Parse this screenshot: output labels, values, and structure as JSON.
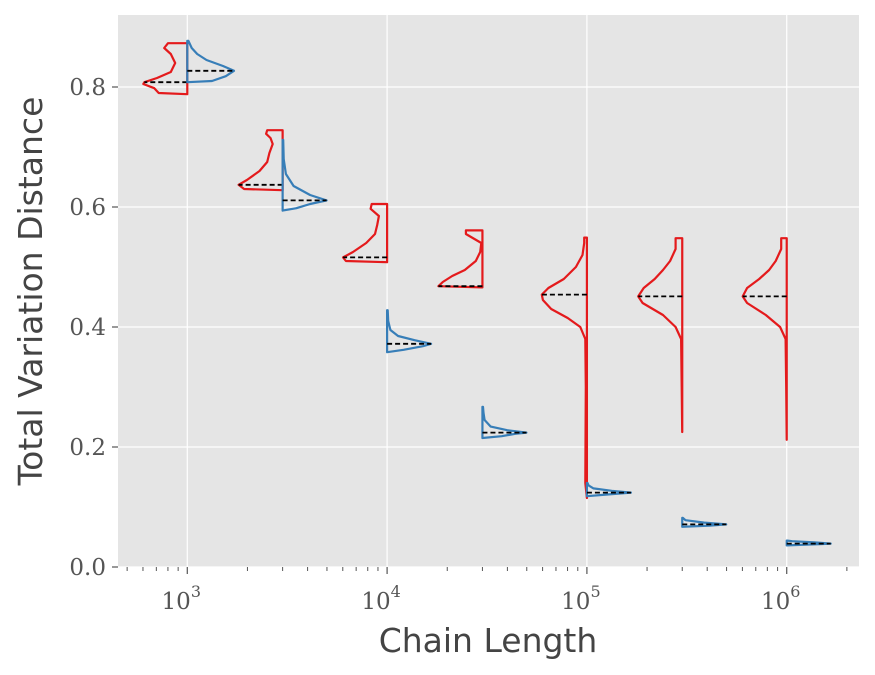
{
  "chart_data": {
    "type": "violin",
    "xlabel": "Chain Length",
    "ylabel": "Total Variation Distance",
    "x_scale": "log",
    "xlim": [
      450,
      2300000
    ],
    "ylim": [
      0.0,
      0.92
    ],
    "x_ticks": [
      {
        "value": 1000,
        "base": "10",
        "exp": "3"
      },
      {
        "value": 10000,
        "base": "10",
        "exp": "4"
      },
      {
        "value": 100000,
        "base": "10",
        "exp": "5"
      },
      {
        "value": 1000000,
        "base": "10",
        "exp": "6"
      }
    ],
    "y_ticks": [
      {
        "value": 0.0,
        "label": "0.0"
      },
      {
        "value": 0.2,
        "label": "0.2"
      },
      {
        "value": 0.4,
        "label": "0.4"
      },
      {
        "value": 0.6,
        "label": "0.6"
      },
      {
        "value": 0.8,
        "label": "0.8"
      }
    ],
    "grid": true,
    "background": "#e5e5e5",
    "colors": {
      "red": "#e41a1c",
      "blue": "#377eb8",
      "median": "#000000"
    },
    "series": [
      {
        "color": "#e41a1c",
        "side": "left",
        "violins": [
          {
            "x": 1000,
            "min": 0.788,
            "max": 0.873,
            "median": 0.808,
            "profile": [
              [
                0.788,
                0.0
              ],
              [
                0.79,
                0.52
              ],
              [
                0.798,
                0.6
              ],
              [
                0.805,
                0.8
              ],
              [
                0.808,
                0.78
              ],
              [
                0.815,
                0.55
              ],
              [
                0.825,
                0.3
              ],
              [
                0.84,
                0.22
              ],
              [
                0.855,
                0.3
              ],
              [
                0.865,
                0.42
              ],
              [
                0.873,
                0.35
              ]
            ]
          },
          {
            "x": 3000,
            "min": 0.628,
            "max": 0.728,
            "median": 0.637,
            "profile": [
              [
                0.628,
                0.0
              ],
              [
                0.63,
                0.7
              ],
              [
                0.637,
                0.8
              ],
              [
                0.645,
                0.65
              ],
              [
                0.66,
                0.42
              ],
              [
                0.675,
                0.28
              ],
              [
                0.69,
                0.24
              ],
              [
                0.705,
                0.18
              ],
              [
                0.715,
                0.22
              ],
              [
                0.722,
                0.3
              ],
              [
                0.728,
                0.28
              ]
            ]
          },
          {
            "x": 10000,
            "min": 0.508,
            "max": 0.605,
            "median": 0.516,
            "profile": [
              [
                0.508,
                0.0
              ],
              [
                0.51,
                0.75
              ],
              [
                0.516,
                0.8
              ],
              [
                0.525,
                0.62
              ],
              [
                0.54,
                0.38
              ],
              [
                0.555,
                0.22
              ],
              [
                0.57,
                0.18
              ],
              [
                0.585,
                0.15
              ],
              [
                0.597,
                0.3
              ],
              [
                0.605,
                0.28
              ]
            ]
          },
          {
            "x": 30000,
            "min": 0.466,
            "max": 0.561,
            "median": 0.468,
            "profile": [
              [
                0.466,
                0.0
              ],
              [
                0.468,
                0.8
              ],
              [
                0.475,
                0.72
              ],
              [
                0.485,
                0.55
              ],
              [
                0.495,
                0.32
              ],
              [
                0.51,
                0.12
              ],
              [
                0.525,
                0.04
              ],
              [
                0.54,
                0.02
              ],
              [
                0.555,
                0.3
              ],
              [
                0.561,
                0.3
              ]
            ]
          },
          {
            "x": 100000,
            "min": 0.115,
            "max": 0.549,
            "median": 0.454,
            "profile": [
              [
                0.115,
                0.0
              ],
              [
                0.14,
                0.03
              ],
              [
                0.3,
                0.02
              ],
              [
                0.38,
                0.03
              ],
              [
                0.4,
                0.12
              ],
              [
                0.415,
                0.35
              ],
              [
                0.43,
                0.65
              ],
              [
                0.445,
                0.8
              ],
              [
                0.454,
                0.82
              ],
              [
                0.465,
                0.7
              ],
              [
                0.48,
                0.42
              ],
              [
                0.5,
                0.2
              ],
              [
                0.52,
                0.08
              ],
              [
                0.54,
                0.05
              ],
              [
                0.549,
                0.05
              ]
            ]
          },
          {
            "x": 300000,
            "min": 0.225,
            "max": 0.548,
            "median": 0.451,
            "profile": [
              [
                0.225,
                0.0
              ],
              [
                0.3,
                0.01
              ],
              [
                0.38,
                0.02
              ],
              [
                0.4,
                0.12
              ],
              [
                0.42,
                0.35
              ],
              [
                0.44,
                0.72
              ],
              [
                0.451,
                0.8
              ],
              [
                0.465,
                0.7
              ],
              [
                0.48,
                0.5
              ],
              [
                0.495,
                0.35
              ],
              [
                0.51,
                0.22
              ],
              [
                0.53,
                0.12
              ],
              [
                0.548,
                0.12
              ]
            ]
          },
          {
            "x": 1000000,
            "min": 0.212,
            "max": 0.548,
            "median": 0.451,
            "profile": [
              [
                0.212,
                0.0
              ],
              [
                0.3,
                0.01
              ],
              [
                0.38,
                0.02
              ],
              [
                0.4,
                0.12
              ],
              [
                0.42,
                0.38
              ],
              [
                0.44,
                0.72
              ],
              [
                0.451,
                0.8
              ],
              [
                0.465,
                0.72
              ],
              [
                0.48,
                0.5
              ],
              [
                0.495,
                0.32
              ],
              [
                0.51,
                0.2
              ],
              [
                0.53,
                0.1
              ],
              [
                0.548,
                0.1
              ]
            ]
          }
        ]
      },
      {
        "color": "#377eb8",
        "side": "right",
        "violins": [
          {
            "x": 1000,
            "min": 0.808,
            "max": 0.877,
            "median": 0.827,
            "profile": [
              [
                0.808,
                0.0
              ],
              [
                0.81,
                0.45
              ],
              [
                0.818,
                0.7
              ],
              [
                0.827,
                0.85
              ],
              [
                0.835,
                0.65
              ],
              [
                0.845,
                0.35
              ],
              [
                0.855,
                0.18
              ],
              [
                0.865,
                0.08
              ],
              [
                0.877,
                0.02
              ]
            ]
          },
          {
            "x": 3000,
            "min": 0.594,
            "max": 0.712,
            "median": 0.611,
            "profile": [
              [
                0.594,
                0.0
              ],
              [
                0.598,
                0.25
              ],
              [
                0.605,
                0.5
              ],
              [
                0.611,
                0.8
              ],
              [
                0.62,
                0.5
              ],
              [
                0.635,
                0.2
              ],
              [
                0.655,
                0.06
              ],
              [
                0.68,
                0.02
              ],
              [
                0.712,
                0.01
              ]
            ]
          },
          {
            "x": 10000,
            "min": 0.358,
            "max": 0.428,
            "median": 0.372,
            "profile": [
              [
                0.358,
                0.0
              ],
              [
                0.362,
                0.3
              ],
              [
                0.368,
                0.65
              ],
              [
                0.372,
                0.8
              ],
              [
                0.378,
                0.5
              ],
              [
                0.385,
                0.2
              ],
              [
                0.395,
                0.06
              ],
              [
                0.41,
                0.02
              ],
              [
                0.428,
                0.01
              ]
            ]
          },
          {
            "x": 30000,
            "min": 0.215,
            "max": 0.267,
            "median": 0.224,
            "profile": [
              [
                0.215,
                0.0
              ],
              [
                0.218,
                0.35
              ],
              [
                0.222,
                0.6
              ],
              [
                0.224,
                0.8
              ],
              [
                0.228,
                0.45
              ],
              [
                0.234,
                0.15
              ],
              [
                0.245,
                0.04
              ],
              [
                0.257,
                0.02
              ],
              [
                0.267,
                0.01
              ]
            ]
          },
          {
            "x": 100000,
            "min": 0.118,
            "max": 0.14,
            "median": 0.124,
            "profile": [
              [
                0.118,
                0.0
              ],
              [
                0.121,
                0.4
              ],
              [
                0.124,
                0.8
              ],
              [
                0.127,
                0.45
              ],
              [
                0.131,
                0.12
              ],
              [
                0.136,
                0.03
              ],
              [
                0.14,
                0.01
              ]
            ]
          },
          {
            "x": 300000,
            "min": 0.067,
            "max": 0.082,
            "median": 0.071,
            "profile": [
              [
                0.067,
                0.0
              ],
              [
                0.069,
                0.5
              ],
              [
                0.071,
                0.8
              ],
              [
                0.074,
                0.4
              ],
              [
                0.078,
                0.06
              ],
              [
                0.082,
                0.01
              ]
            ]
          },
          {
            "x": 1000000,
            "min": 0.036,
            "max": 0.044,
            "median": 0.039,
            "profile": [
              [
                0.036,
                0.0
              ],
              [
                0.038,
                0.6
              ],
              [
                0.039,
                0.8
              ],
              [
                0.041,
                0.5
              ],
              [
                0.043,
                0.1
              ],
              [
                0.044,
                0.01
              ]
            ]
          }
        ]
      }
    ]
  }
}
